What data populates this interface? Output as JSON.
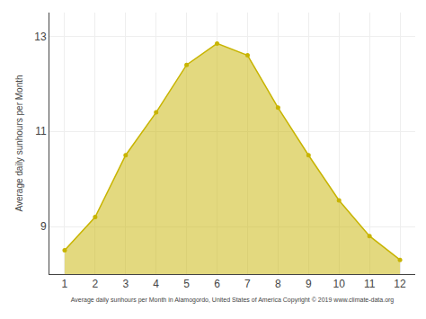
{
  "chart_data": {
    "type": "area",
    "x": [
      1,
      2,
      3,
      4,
      5,
      6,
      7,
      8,
      9,
      10,
      11,
      12
    ],
    "values": [
      8.5,
      9.2,
      10.5,
      11.4,
      12.4,
      12.85,
      12.6,
      11.5,
      10.5,
      9.55,
      8.8,
      8.3
    ],
    "color": "#C8B400",
    "marker": "circle",
    "xlabel": "Average daily sunhours per Month in Alamogordo, United States of America Copyright © 2019 www.climate-data.org",
    "ylabel": "Average daily sunhours per Month",
    "xlim": [
      0.5,
      12.5
    ],
    "xticks": [
      1,
      2,
      3,
      4,
      5,
      6,
      7,
      8,
      9,
      10,
      11,
      12
    ],
    "ylim": [
      8.0,
      13.5
    ],
    "yticks": [
      9,
      11,
      13
    ],
    "grid": true
  }
}
